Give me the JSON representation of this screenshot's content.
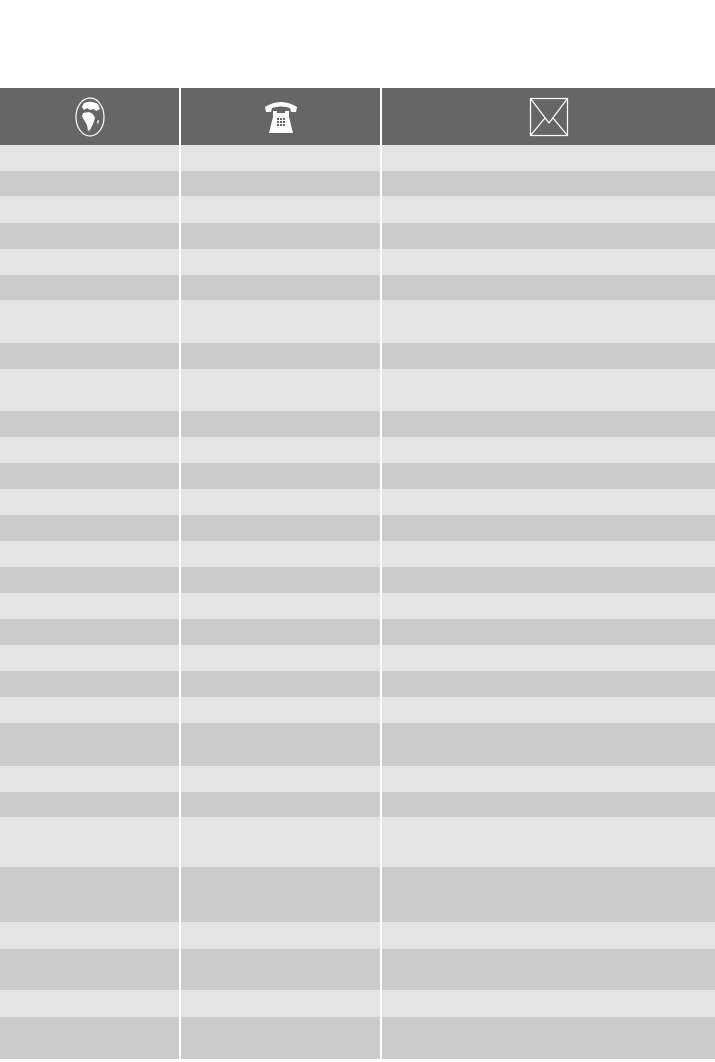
{
  "header": {
    "columns": [
      {
        "icon": "globe-icon"
      },
      {
        "icon": "telephone-icon"
      },
      {
        "icon": "envelope-icon"
      }
    ],
    "background_color": "#666666"
  },
  "rows": [
    [
      "",
      "",
      ""
    ],
    [
      "",
      "",
      ""
    ],
    [
      "",
      "",
      ""
    ],
    [
      "",
      "",
      ""
    ],
    [
      "",
      "",
      ""
    ],
    [
      "",
      "",
      ""
    ],
    [
      "",
      "",
      ""
    ],
    [
      "",
      "",
      ""
    ],
    [
      "",
      "",
      ""
    ],
    [
      "",
      "",
      ""
    ],
    [
      "",
      "",
      ""
    ],
    [
      "",
      "",
      ""
    ],
    [
      "",
      "",
      ""
    ],
    [
      "",
      "",
      ""
    ],
    [
      "",
      "",
      ""
    ],
    [
      "",
      "",
      ""
    ],
    [
      "",
      "",
      ""
    ],
    [
      "",
      "",
      ""
    ],
    [
      "",
      "",
      ""
    ],
    [
      "",
      "",
      ""
    ],
    [
      "",
      "",
      ""
    ],
    [
      "",
      "",
      ""
    ],
    [
      "",
      "",
      ""
    ],
    [
      "",
      "",
      ""
    ],
    [
      "",
      "",
      ""
    ],
    [
      "",
      "",
      ""
    ],
    [
      "",
      "",
      ""
    ],
    [
      "",
      "",
      ""
    ],
    [
      "",
      "",
      ""
    ],
    [
      "",
      "",
      ""
    ]
  ],
  "colors": {
    "row_light": "#e4e4e4",
    "row_dark": "#cbcbcb"
  }
}
